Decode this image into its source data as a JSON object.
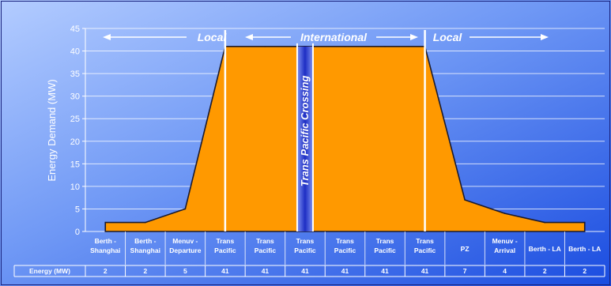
{
  "chart_data": {
    "type": "area",
    "ylabel": "Energy Demand (MW)",
    "ylim": [
      0,
      45
    ],
    "yticks": [
      0,
      5,
      10,
      15,
      20,
      25,
      30,
      35,
      40,
      45
    ],
    "grid": true,
    "categories": [
      [
        "Berth -",
        "Shanghai"
      ],
      [
        "Berth -",
        "Shanghai"
      ],
      [
        "Menuv -",
        "Departure"
      ],
      [
        "Trans",
        "Pacific"
      ],
      [
        "Trans",
        "Pacific"
      ],
      [
        "Trans",
        "Pacific"
      ],
      [
        "Trans",
        "Pacific"
      ],
      [
        "Trans",
        "Pacific"
      ],
      [
        "Trans",
        "Pacific"
      ],
      [
        "PZ"
      ],
      [
        "Menuv -",
        "Arrival"
      ],
      [
        "Berth - LA"
      ],
      [
        "Berth - LA"
      ]
    ],
    "values": [
      2,
      2,
      5,
      41,
      41,
      41,
      41,
      41,
      41,
      7,
      4,
      2,
      2
    ],
    "table": {
      "header": "Energy (MW)",
      "row": [
        "2",
        "2",
        "5",
        "41",
        "41",
        "41",
        "41",
        "41",
        "41",
        "7",
        "4",
        "2",
        "2"
      ]
    },
    "annotations": {
      "local_left": "Local",
      "international": "International",
      "local_right": "Local",
      "crossing": "Trans Pacific Crossing"
    },
    "colors": {
      "area": "#FF9900",
      "background_light": "#A9C6FF",
      "background_dark": "#1A4CE0",
      "band": "#2233C8",
      "text": "#FFFFFF"
    }
  }
}
